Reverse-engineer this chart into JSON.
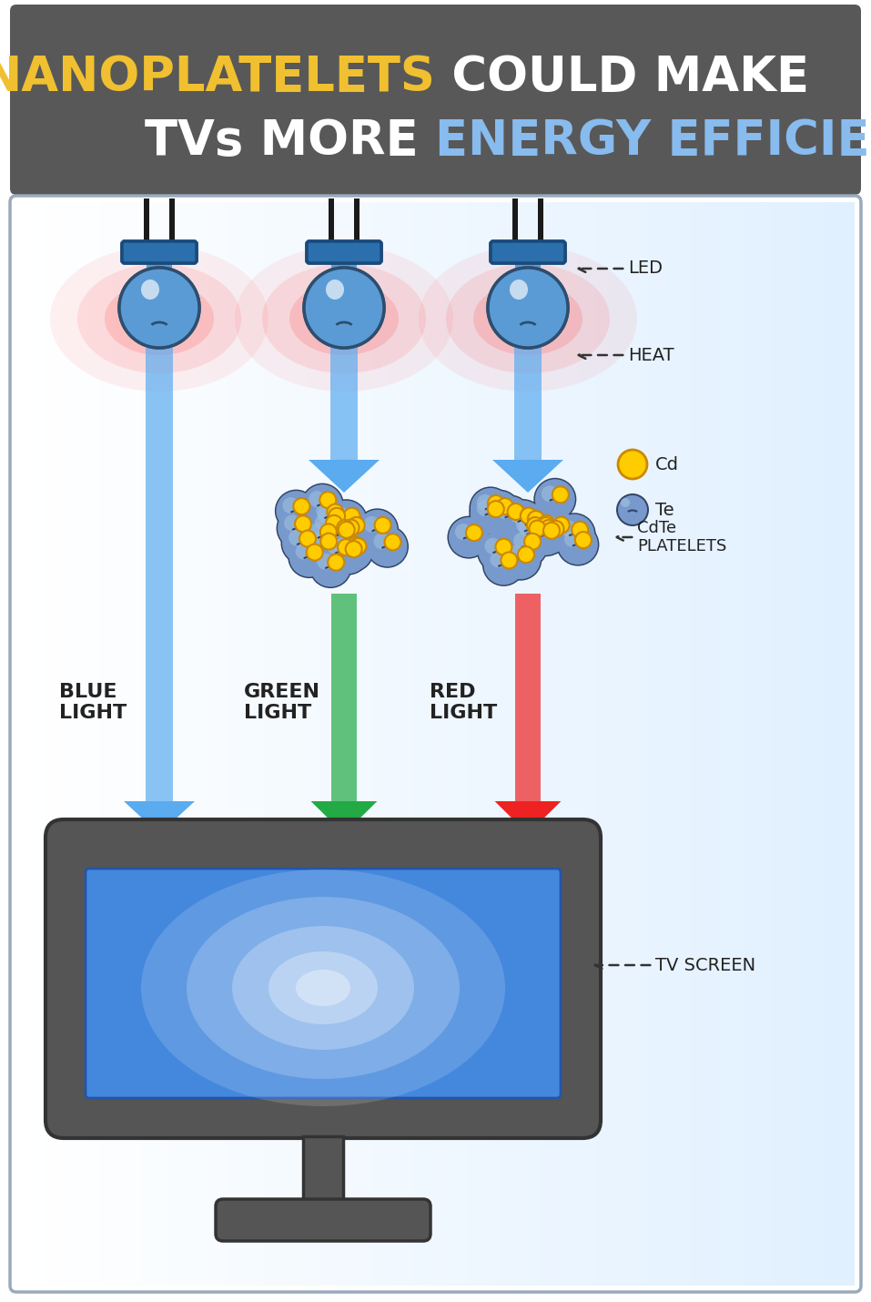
{
  "title_line1_yellow": "NANOPLATELETS",
  "title_line1_white": " COULD MAKE",
  "title_line2_white": "TVs MORE ",
  "title_line2_blue": "ENERGY EFFICIENT",
  "header_bg": "#585858",
  "led_body_color": "#5b9bd5",
  "led_body_color2": "#7fbfff",
  "led_edge_color": "#2d4e6e",
  "led_top_color": "#3a7abf",
  "led_glow_color": "#ff4444",
  "plug_prong_color": "#222222",
  "plug_cap_color": "#2c6fad",
  "plug_cap_edge": "#1a4a7a",
  "arrow_blue": "#5aabf0",
  "arrow_green": "#22aa44",
  "arrow_red": "#ee2222",
  "beam_blue": "#aaccff",
  "beam_green": "#88dd88",
  "beam_red": "#ffaaaa",
  "platelet_blue": "#7799cc",
  "platelet_blue2": "#99bbdd",
  "platelet_edge": "#334466",
  "platelet_dot": "#ffcc00",
  "platelet_dot_edge": "#cc8800",
  "tv_body": "#555555",
  "tv_body_edge": "#333333",
  "tv_screen_blue": "#4488dd",
  "tv_screen_edge": "#2255aa",
  "label_blue": "BLUE\nLIGHT",
  "label_green": "GREEN\nLIGHT",
  "label_red": "RED\nLIGHT",
  "label_led": "LED",
  "label_heat": "HEAT",
  "label_platelets": "CdTe\nPLATELETS",
  "label_cd": "Cd",
  "label_te": "Te",
  "label_tv": "TV SCREEN",
  "text_dark": "#222222",
  "border_color": "#99aabb",
  "bg_color": "#eef4fb"
}
